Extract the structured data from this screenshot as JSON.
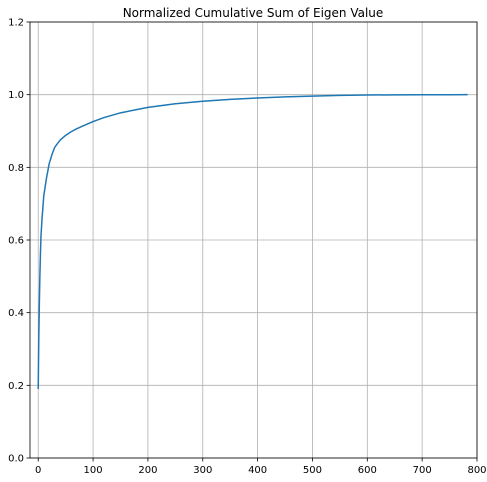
{
  "chart_data": {
    "type": "line",
    "title": "Normalized Cumulative Sum of Eigen Value",
    "xlabel": "",
    "ylabel": "",
    "xlim": [
      -15,
      800
    ],
    "ylim": [
      0.0,
      1.2
    ],
    "xticks": [
      0,
      100,
      200,
      300,
      400,
      500,
      600,
      700,
      800
    ],
    "xtick_labels": [
      "0",
      "100",
      "200",
      "300",
      "400",
      "500",
      "600",
      "700",
      "800"
    ],
    "yticks": [
      0.0,
      0.2,
      0.4,
      0.6,
      0.8,
      1.0,
      1.2
    ],
    "ytick_labels": [
      "0.0",
      "0.2",
      "0.4",
      "0.6",
      "0.8",
      "1.0",
      "1.2"
    ],
    "grid": true,
    "legend": false,
    "series": [
      {
        "color": "#1f77b4",
        "x": [
          0,
          1,
          2,
          3,
          4,
          5,
          7,
          10,
          15,
          20,
          25,
          30,
          40,
          50,
          60,
          70,
          80,
          100,
          120,
          150,
          200,
          250,
          300,
          350,
          400,
          450,
          500,
          550,
          600,
          650,
          700,
          750,
          783
        ],
        "y": [
          0.19,
          0.33,
          0.42,
          0.5,
          0.56,
          0.61,
          0.66,
          0.72,
          0.77,
          0.81,
          0.835,
          0.855,
          0.875,
          0.888,
          0.898,
          0.906,
          0.913,
          0.926,
          0.937,
          0.95,
          0.965,
          0.975,
          0.982,
          0.987,
          0.991,
          0.994,
          0.996,
          0.998,
          0.999,
          0.9995,
          0.9998,
          0.9999,
          1.0
        ]
      }
    ]
  }
}
